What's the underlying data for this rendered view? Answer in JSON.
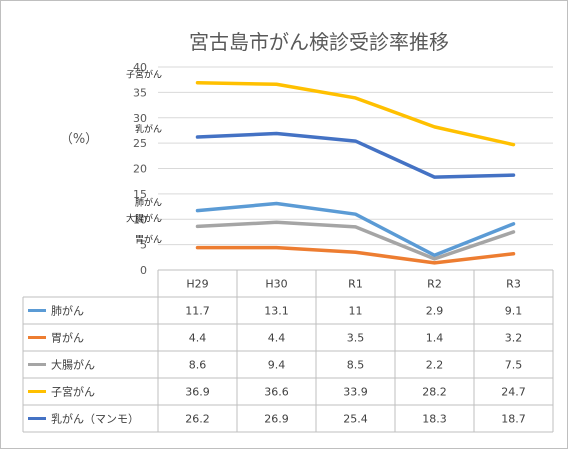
{
  "chart_data": {
    "type": "line",
    "title": "宮古島市がん検診受診率推移",
    "ylabel": "（%）",
    "ylim": [
      0,
      40
    ],
    "yticks": [
      0,
      5,
      10,
      15,
      20,
      25,
      30,
      35,
      40
    ],
    "grid": true,
    "categories": [
      "H29",
      "H30",
      "R1",
      "R2",
      "R3"
    ],
    "series": [
      {
        "name": "肺がん",
        "chart_label": "肺がん",
        "color": "#5b9bd5",
        "values": [
          11.7,
          13.1,
          11,
          2.9,
          9.1
        ],
        "display": [
          "11.7",
          "13.1",
          "11",
          "2.9",
          "9.1"
        ]
      },
      {
        "name": "胃がん",
        "chart_label": "胃がん",
        "color": "#ed7d31",
        "values": [
          4.4,
          4.4,
          3.5,
          1.4,
          3.2
        ],
        "display": [
          "4.4",
          "4.4",
          "3.5",
          "1.4",
          "3.2"
        ]
      },
      {
        "name": "大腸がん",
        "chart_label": "大腸がん",
        "color": "#a5a5a5",
        "values": [
          8.6,
          9.4,
          8.5,
          2.2,
          7.5
        ],
        "display": [
          "8.6",
          "9.4",
          "8.5",
          "2.2",
          "7.5"
        ]
      },
      {
        "name": "子宮がん",
        "chart_label": "子宮がん",
        "color": "#ffc000",
        "values": [
          36.9,
          36.6,
          33.9,
          28.2,
          24.7
        ],
        "display": [
          "36.9",
          "36.6",
          "33.9",
          "28.2",
          "24.7"
        ]
      },
      {
        "name": "乳がん（マンモ）",
        "chart_label": "乳がん",
        "color": "#4472c4",
        "values": [
          26.2,
          26.9,
          25.4,
          18.3,
          18.7
        ],
        "display": [
          "26.2",
          "26.9",
          "25.4",
          "18.3",
          "18.7"
        ]
      }
    ]
  }
}
